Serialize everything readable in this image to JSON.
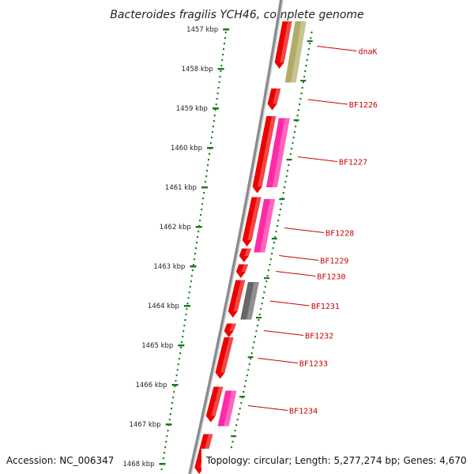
{
  "title": "Bacteroides fragilis YCH46, complete genome",
  "accession": "Accession: NC_006347",
  "topology": "Topology: circular; Length: 5,277,274 bp; Genes: 4,670",
  "ruler": {
    "start_kbp": 1457,
    "end_kbp": 1468,
    "labels": [
      "1457 kbp",
      "1458 kbp",
      "1459 kbp",
      "1460 kbp",
      "1461 kbp",
      "1462 kbp",
      "1463 kbp",
      "1464 kbp",
      "1465 kbp",
      "1466 kbp",
      "1467 kbp",
      "1468 kbp"
    ]
  },
  "colors": {
    "backbone": "#8a8a8a",
    "ruler_tick": "#1a7a1a",
    "gene_red": "#ee0000",
    "gene_pink": "#ff2aa6",
    "gene_olive": "#b0ac66",
    "gene_gray": "#666666",
    "label": "#cc0000"
  },
  "genes": [
    {
      "label": "dnaK",
      "start": 1456.8,
      "end": 1458.0,
      "color": "red"
    },
    {
      "label": "",
      "start": 1456.8,
      "end": 1458.35,
      "color": "olive",
      "track": "outer"
    },
    {
      "label": "BF1226",
      "start": 1458.5,
      "end": 1459.05,
      "color": "red"
    },
    {
      "label": "BF1227",
      "start": 1459.2,
      "end": 1461.15,
      "color": "red"
    },
    {
      "label": "",
      "start": 1459.25,
      "end": 1461.0,
      "color": "pink",
      "track": "outer"
    },
    {
      "label": "BF1228",
      "start": 1461.25,
      "end": 1462.5,
      "color": "red"
    },
    {
      "label": "",
      "start": 1461.3,
      "end": 1462.65,
      "color": "pink",
      "track": "outer"
    },
    {
      "label": "BF1229",
      "start": 1462.55,
      "end": 1462.9,
      "color": "red"
    },
    {
      "label": "BF1230",
      "start": 1462.95,
      "end": 1463.3,
      "color": "red"
    },
    {
      "label": "BF1231",
      "start": 1463.35,
      "end": 1464.3,
      "color": "red"
    },
    {
      "label": "",
      "start": 1463.4,
      "end": 1464.35,
      "color": "gray",
      "track": "outer"
    },
    {
      "label": "BF1232",
      "start": 1464.45,
      "end": 1464.8,
      "color": "red"
    },
    {
      "label": "BF1233",
      "start": 1464.8,
      "end": 1465.85,
      "color": "red"
    },
    {
      "label": "BF1234",
      "start": 1466.05,
      "end": 1466.95,
      "color": "red"
    },
    {
      "label": "",
      "start": 1466.15,
      "end": 1467.05,
      "color": "pink",
      "track": "outer"
    },
    {
      "label": "",
      "start": 1467.25,
      "end": 1468.3,
      "color": "red"
    }
  ],
  "gene_labels": [
    {
      "text": "dnaK",
      "kbp": 1457.55
    },
    {
      "text": "BF1226",
      "kbp": 1458.9
    },
    {
      "text": "BF1227",
      "kbp": 1460.35
    },
    {
      "text": "BF1228",
      "kbp": 1462.15
    },
    {
      "text": "BF1229",
      "kbp": 1462.85
    },
    {
      "text": "BF1230",
      "kbp": 1463.25
    },
    {
      "text": "BF1231",
      "kbp": 1464.0
    },
    {
      "text": "BF1232",
      "kbp": 1464.75
    },
    {
      "text": "BF1233",
      "kbp": 1465.45
    },
    {
      "text": "BF1234",
      "kbp": 1466.65
    }
  ]
}
